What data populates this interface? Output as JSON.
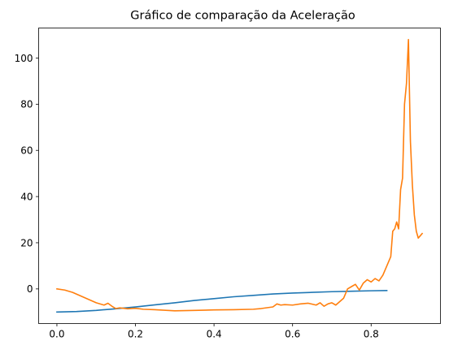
{
  "chart_data": {
    "type": "line",
    "title": "Gráfico de comparação da Aceleração",
    "xlabel": "",
    "ylabel": "",
    "xlim": [
      -0.0465,
      0.9765
    ],
    "ylim": [
      -15.0,
      113.0
    ],
    "xticks": [
      0.0,
      0.2,
      0.4,
      0.6,
      0.8
    ],
    "xtick_labels": [
      "0.0",
      "0.2",
      "0.4",
      "0.6",
      "0.8"
    ],
    "yticks": [
      0,
      20,
      40,
      60,
      80,
      100
    ],
    "ytick_labels": [
      "0",
      "20",
      "40",
      "60",
      "80",
      "100"
    ],
    "grid": false,
    "legend": "none",
    "series": [
      {
        "color": "#1f77b4",
        "x": [
          0.0,
          0.05,
          0.1,
          0.15,
          0.2,
          0.25,
          0.3,
          0.35,
          0.4,
          0.45,
          0.5,
          0.55,
          0.6,
          0.65,
          0.7,
          0.75,
          0.8,
          0.84
        ],
        "y": [
          -10.0,
          -9.8,
          -9.3,
          -8.6,
          -7.8,
          -6.9,
          -6.0,
          -5.0,
          -4.2,
          -3.4,
          -2.8,
          -2.2,
          -1.8,
          -1.5,
          -1.2,
          -1.0,
          -0.8,
          -0.7
        ]
      },
      {
        "color": "#ff7f0e",
        "x": [
          0.0,
          0.02,
          0.04,
          0.06,
          0.08,
          0.1,
          0.12,
          0.13,
          0.14,
          0.15,
          0.16,
          0.18,
          0.2,
          0.22,
          0.25,
          0.3,
          0.35,
          0.4,
          0.45,
          0.5,
          0.52,
          0.55,
          0.56,
          0.57,
          0.58,
          0.6,
          0.62,
          0.64,
          0.66,
          0.67,
          0.68,
          0.69,
          0.7,
          0.71,
          0.72,
          0.73,
          0.74,
          0.75,
          0.76,
          0.77,
          0.78,
          0.79,
          0.8,
          0.81,
          0.82,
          0.83,
          0.84,
          0.85,
          0.855,
          0.86,
          0.865,
          0.87,
          0.875,
          0.88,
          0.885,
          0.89,
          0.895,
          0.9,
          0.905,
          0.91,
          0.915,
          0.92,
          0.925,
          0.93
        ],
        "y": [
          0.0,
          -0.5,
          -1.5,
          -3.0,
          -4.5,
          -6.0,
          -7.0,
          -6.2,
          -7.5,
          -8.5,
          -8.2,
          -8.6,
          -8.4,
          -8.8,
          -9.0,
          -9.5,
          -9.3,
          -9.1,
          -9.0,
          -8.8,
          -8.5,
          -7.8,
          -6.5,
          -7.0,
          -6.8,
          -7.0,
          -6.5,
          -6.2,
          -7.0,
          -6.0,
          -7.5,
          -6.5,
          -6.0,
          -7.0,
          -5.5,
          -4.0,
          0.0,
          1.0,
          2.0,
          -0.5,
          2.5,
          4.0,
          3.0,
          4.5,
          3.5,
          6.0,
          10.0,
          14.0,
          25.0,
          26.0,
          29.0,
          26.0,
          43.0,
          48.0,
          80.0,
          89.0,
          108.0,
          64.0,
          45.0,
          32.0,
          25.0,
          22.0,
          23.0,
          24.0
        ]
      }
    ]
  }
}
